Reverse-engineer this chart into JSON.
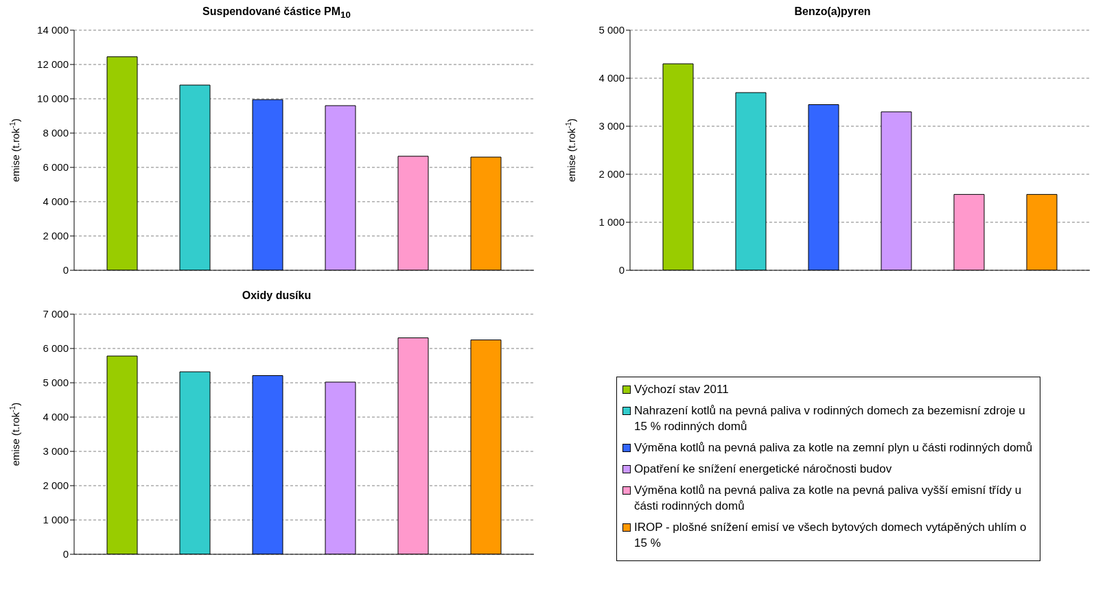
{
  "chart_data": [
    {
      "type": "bar",
      "title": "Suspendované částice PM$_{10}$",
      "ylabel": "emise (t.rok$^{-1}$)",
      "categories": [
        null
      ],
      "grid": "y",
      "ylim": [
        0,
        14000
      ],
      "yticks": [
        {
          "value": 0,
          "label": "0"
        },
        {
          "value": 2000,
          "label": "2 000"
        },
        {
          "value": 4000,
          "label": "4 000"
        },
        {
          "value": 6000,
          "label": "6 000"
        },
        {
          "value": 8000,
          "label": "8 000"
        },
        {
          "value": 10000,
          "label": "10 000"
        },
        {
          "value": 12000,
          "label": "12 000"
        },
        {
          "value": 14000,
          "label": "14 000"
        }
      ],
      "series": [
        {
          "color": "#99cc00",
          "values": [
            12450
          ]
        },
        {
          "color": "#33cccc",
          "values": [
            10800
          ]
        },
        {
          "color": "#3366ff",
          "values": [
            9950
          ]
        },
        {
          "color": "#cc99ff",
          "values": [
            9600
          ]
        },
        {
          "color": "#ff99cc",
          "values": [
            6650
          ]
        },
        {
          "color": "#ff9900",
          "values": [
            6600
          ]
        }
      ]
    },
    {
      "type": "bar",
      "title": "Benzo(a)pyren",
      "ylabel": "emise (t.rok$^{-1}$)",
      "categories": [
        null
      ],
      "grid": "y",
      "ylim": [
        0,
        5000
      ],
      "yticks": [
        {
          "value": 0,
          "label": "0"
        },
        {
          "value": 1000,
          "label": "1 000"
        },
        {
          "value": 2000,
          "label": "2 000"
        },
        {
          "value": 3000,
          "label": "3 000"
        },
        {
          "value": 4000,
          "label": "4 000"
        },
        {
          "value": 5000,
          "label": "5 000"
        }
      ],
      "series": [
        {
          "color": "#99cc00",
          "values": [
            4300
          ]
        },
        {
          "color": "#33cccc",
          "values": [
            3700
          ]
        },
        {
          "color": "#3366ff",
          "values": [
            3450
          ]
        },
        {
          "color": "#cc99ff",
          "values": [
            3300
          ]
        },
        {
          "color": "#ff99cc",
          "values": [
            1580
          ]
        },
        {
          "color": "#ff9900",
          "values": [
            1580
          ]
        }
      ]
    },
    {
      "type": "bar",
      "title": "Oxidy dusíku",
      "ylabel": "emise (t.rok$^{-1}$)",
      "categories": [
        null
      ],
      "grid": "y",
      "legend": "right",
      "ylim": [
        0,
        7000
      ],
      "yticks": [
        {
          "value": 0,
          "label": "0"
        },
        {
          "value": 1000,
          "label": "1 000"
        },
        {
          "value": 2000,
          "label": "2 000"
        },
        {
          "value": 3000,
          "label": "3 000"
        },
        {
          "value": 4000,
          "label": "4 000"
        },
        {
          "value": 5000,
          "label": "5 000"
        },
        {
          "value": 6000,
          "label": "6 000"
        },
        {
          "value": 7000,
          "label": "7 000"
        }
      ],
      "series": [
        {
          "name": "Výchozí stav 2011",
          "color": "#99cc00",
          "values": [
            5780
          ]
        },
        {
          "name": "Nahrazení kotlů na pevná paliva v rodinných domech za bezemisní zdroje u 15 % rodinných domů",
          "color": "#33cccc",
          "values": [
            5320
          ]
        },
        {
          "name": "Výměna kotlů na pevná paliva za kotle na zemní plyn u části rodinných domů",
          "color": "#3366ff",
          "values": [
            5210
          ]
        },
        {
          "name": "Opatření ke snížení energetické náročnosti budov",
          "color": "#cc99ff",
          "values": [
            5020
          ]
        },
        {
          "name": "Výměna kotlů na pevná paliva za kotle na pevná paliva vyšší emisní třídy u části rodinných domů",
          "color": "#ff99cc",
          "values": [
            6310
          ]
        },
        {
          "name": "IROP - plošné snížení emisí ve všech bytových domech vytápěných uhlím o 15 %",
          "color": "#ff9900",
          "values": [
            6250
          ]
        }
      ]
    }
  ]
}
